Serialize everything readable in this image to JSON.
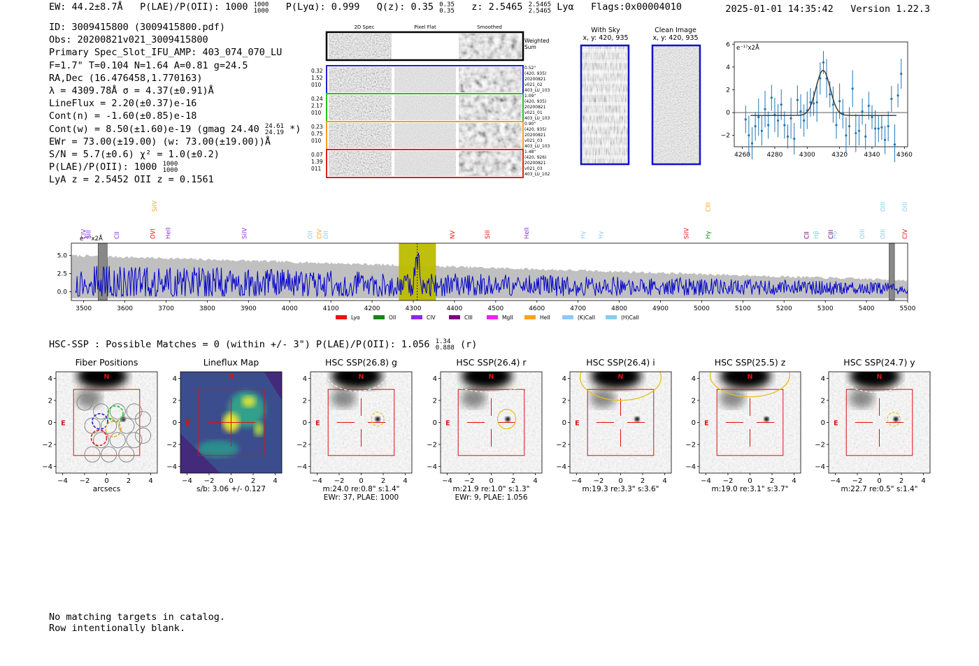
{
  "header": {
    "ew": "EW: 44.2±8.7Å",
    "plae": "P(LAE)/P(OII): 1000",
    "plae_hi": "1000",
    "plae_lo": "1000",
    "plya": "P(Lyα): 0.999",
    "qz": "Q(z): 0.35",
    "qz_hi": "0.35",
    "qz_lo": "0.35",
    "z": "z: 2.5465",
    "z_hi": "2.5465",
    "z_lo": "2.5465",
    "line": "Lyα",
    "flags": "Flags:0x00004010",
    "datetime": "2025-01-01 14:35:42",
    "version": "Version 1.22.3"
  },
  "info": {
    "lines": [
      "ID: 3009415800 (3009415800.pdf)",
      "Obs: 20200821v021_3009415800",
      "Primary Spec_Slot_IFU_AMP: 403_074_070_LU",
      "F=1.7\"  T=0.104  N=1.64  A=0.81  g=24.5",
      "RA,Dec (16.476458,1.770163)",
      "λ = 4309.78Å  σ = 4.37(±0.91)Å",
      "LineFlux = 2.20(±0.37)e-16",
      "Cont(n) = -1.60(±0.85)e-18"
    ],
    "contw": "Cont(w) = 8.50(±1.60)e-19 (gmag 24.40",
    "contw_hi": "24.61",
    "contw_lo": "24.19",
    "contw_end": "*)",
    "lines2": [
      "EWr = 73.00(±19.00) (w: 73.00(±19.00))Å",
      "S/N = 5.7(±0.6)  χ² = 1.0(±0.2)"
    ],
    "plae2": "P(LAE)/P(OII): 1000",
    "plae2_hi": "1000",
    "plae2_lo": "1000",
    "lya_oii": "LyA z = 2.5452  OII z = 0.1561"
  },
  "stamps": {
    "col_headers": [
      "2D Spec",
      "Pixel Flat",
      "Smoothed"
    ],
    "weighted_sum": [
      "Weighted",
      "Sum"
    ],
    "rows": [
      {
        "left": [
          "0.32",
          "1.52",
          "010"
        ],
        "right": [
          "0.52\"",
          "(420, 935)",
          "20200821",
          "v021_02",
          "403_LU_103"
        ],
        "color": "#1f1fd0"
      },
      {
        "left": [
          "0.24",
          "2.17",
          "010"
        ],
        "right": [
          "1.09\"",
          "(420, 935)",
          "20200821",
          "v021_01",
          "403_LU_103"
        ],
        "color": "#22c022"
      },
      {
        "left": [
          "0.23",
          "0.75",
          "010"
        ],
        "right": [
          "0.90\"",
          "(420, 935)",
          "20200821",
          "v021_03",
          "403_LU_103"
        ],
        "color": "#f0a020"
      },
      {
        "left": [
          "0.07",
          "1.39",
          "011"
        ],
        "right": [
          "1.48\"",
          "(420, 926)",
          "20200821",
          "v021_03",
          "403_LU_102"
        ],
        "color": "#e02020"
      }
    ]
  },
  "cutouts": {
    "with_sky": "With Sky",
    "with_sky_xy": "x, y: 420, 935",
    "clean": "Clean Image",
    "clean_xy": "x, y: 420, 935"
  },
  "line_fit": {
    "unit": "e⁻¹⁷x2Å",
    "xticks": [
      "4260",
      "4280",
      "4300",
      "4320",
      "4340",
      "4360"
    ],
    "yticks": [
      "6",
      "4",
      "2",
      "0",
      "−2"
    ]
  },
  "spectrum": {
    "unit": "e⁻¹⁷x2Å",
    "xticks": [
      "3500",
      "3600",
      "3700",
      "3800",
      "3900",
      "4000",
      "4100",
      "4200",
      "4300",
      "4400",
      "4500",
      "4600",
      "4700",
      "4800",
      "4900",
      "5000",
      "5100",
      "5200",
      "5300",
      "5400",
      "5500"
    ],
    "yticks": [
      "5.0",
      "2.5",
      "0.0"
    ],
    "legend": [
      {
        "label": "Lyα",
        "color": "#ee1111"
      },
      {
        "label": "OII",
        "color": "#118811"
      },
      {
        "label": "CIV",
        "color": "#8a2be2"
      },
      {
        "label": "CIII",
        "color": "#800080"
      },
      {
        "label": "MgII",
        "color": "#ee22ee"
      },
      {
        "label": "HeII",
        "color": "#ffa020"
      },
      {
        "label": "(K)CaII",
        "color": "#8ec8ff"
      },
      {
        "label": "(H)CaII",
        "color": "#87ceeb"
      }
    ],
    "lines": [
      {
        "label": "CIV",
        "color": "#8a2be2",
        "wave": 3500,
        "row": 0
      },
      {
        "label": "SiII",
        "color": "#8a2be2",
        "wave": 3512,
        "row": 0
      },
      {
        "label": "CII",
        "color": "#8a2be2",
        "wave": 3580,
        "row": 0
      },
      {
        "label": "SiIV",
        "color": "#ffa020",
        "wave": 3672,
        "row": 1
      },
      {
        "label": "OVI",
        "color": "#ee1111",
        "wave": 3668,
        "row": 0
      },
      {
        "label": "HeII",
        "color": "#8a2be2",
        "wave": 3705,
        "row": 0
      },
      {
        "label": "SiIV",
        "color": "#8a2be2",
        "wave": 3890,
        "row": 0
      },
      {
        "label": "OII",
        "color": "#87ceeb",
        "wave": 4050,
        "row": 0
      },
      {
        "label": "CIV",
        "color": "#ffa020",
        "wave": 4072,
        "row": 0
      },
      {
        "label": "OII",
        "color": "#87ceeb",
        "wave": 4088,
        "row": 0
      },
      {
        "label": "NV",
        "color": "#ee1111",
        "wave": 4395,
        "row": 0
      },
      {
        "label": "SiII",
        "color": "#ee1111",
        "wave": 4480,
        "row": 0
      },
      {
        "label": "HeII",
        "color": "#8a2be2",
        "wave": 4575,
        "row": 0
      },
      {
        "label": "Hγ",
        "color": "#87ceeb",
        "wave": 4712,
        "row": 0
      },
      {
        "label": "Hγ",
        "color": "#87ceeb",
        "wave": 4755,
        "row": 0
      },
      {
        "label": "SiIV",
        "color": "#ee1111",
        "wave": 4963,
        "row": 0
      },
      {
        "label": "CIII",
        "color": "#ffa020",
        "wave": 5015,
        "row": 1
      },
      {
        "label": "Hγ",
        "color": "#118811",
        "wave": 5015,
        "row": 0
      },
      {
        "label": "CII",
        "color": "#800080",
        "wave": 5255,
        "row": 0
      },
      {
        "label": "Hβ",
        "color": "#87ceeb",
        "wave": 5278,
        "row": 0
      },
      {
        "label": "CIII",
        "color": "#800080",
        "wave": 5313,
        "row": 0
      },
      {
        "label": "Hδ",
        "color": "#87ceeb",
        "wave": 5323,
        "row": 0
      },
      {
        "label": "OIII",
        "color": "#87ceeb",
        "wave": 5390,
        "row": 0
      },
      {
        "label": "OIII",
        "color": "#87ceeb",
        "wave": 5440,
        "row": 0
      },
      {
        "label": "OIII",
        "color": "#87ceeb",
        "wave": 5440,
        "row": 1
      },
      {
        "label": "OIII",
        "color": "#87ceeb",
        "wave": 5493,
        "row": 1
      },
      {
        "label": "CIV",
        "color": "#ee1111",
        "wave": 5493,
        "row": 0
      }
    ]
  },
  "hsc_line": {
    "text": "HSC-SSP : Possible Matches = 0 (within +/- 3\")  P(LAE)/P(OII): 1.056",
    "hi": "1.34",
    "lo": "0.888",
    "end": "(r)"
  },
  "panels": [
    {
      "title": "Fiber Positions",
      "cap1": "arcsecs",
      "cap2": "",
      "kind": "fiber"
    },
    {
      "title": "Lineflux Map",
      "cap1": "s/b: 3.06 +/- 0.127",
      "cap2": "",
      "kind": "flux"
    },
    {
      "title": "HSC SSP(26.8) g",
      "cap1": "m:24.0  re:0.8\"  s:1.4\"",
      "cap2": "EWr: 37, PLAE: 1000",
      "kind": "g"
    },
    {
      "title": "HSC SSP(26.4) r",
      "cap1": "m:21.9  re:1.0\"  s:1.3\"",
      "cap2": "EWr: 9, PLAE: 1.056",
      "kind": "r"
    },
    {
      "title": "HSC SSP(26.4) i",
      "cap1": "m:19.3  re:3.3\"  s:3.6\"",
      "cap2": "",
      "kind": "i"
    },
    {
      "title": "HSC SSP(25.5) z",
      "cap1": "m:19.0  re:3.1\"  s:3.7\"",
      "cap2": "",
      "kind": "z"
    },
    {
      "title": "HSC SSP(24.7) y",
      "cap1": "m:22.7  re:0.5\"  s:1.4\"",
      "cap2": "",
      "kind": "y"
    }
  ],
  "panel_axes": {
    "xticks": [
      "−4",
      "−2",
      "0",
      "2",
      "4"
    ],
    "yticks": [
      "4",
      "2",
      "0",
      "−2",
      "−4"
    ],
    "north": "N",
    "east": "E"
  },
  "footer": {
    "line1": "No matching targets in catalog.",
    "line2": "Row intentionally blank."
  },
  "chart_data": [
    {
      "type": "scatter",
      "title": "",
      "xlabel": "",
      "ylabel": "e⁻¹⁷x2Å",
      "xlim": [
        4255,
        4362
      ],
      "ylim": [
        -3,
        6.2
      ],
      "x": [
        4262,
        4264,
        4266,
        4268,
        4270,
        4272,
        4274,
        4276,
        4278,
        4280,
        4282,
        4284,
        4286,
        4288,
        4290,
        4292,
        4294,
        4296,
        4298,
        4300,
        4302,
        4304,
        4306,
        4308,
        4310,
        4312,
        4314,
        4316,
        4318,
        4320,
        4322,
        4324,
        4326,
        4328,
        4330,
        4332,
        4334,
        4336,
        4338,
        4340,
        4342,
        4344,
        4346,
        4348,
        4350,
        4352,
        4354,
        4356,
        4358
      ],
      "y": [
        -0.6,
        -2.0,
        -2.7,
        -1.2,
        -0.4,
        -1.6,
        0.3,
        -1.1,
        1.3,
        -0.2,
        -0.7,
        0.7,
        -1.1,
        -2.1,
        -0.5,
        -2.3,
        1.1,
        0.1,
        -0.7,
        0.2,
        0.9,
        0.8,
        0.9,
        3.0,
        4.4,
        3.0,
        1.6,
        0.7,
        -1.1,
        1.0,
        -0.1,
        -2.0,
        -1.2,
        2.1,
        -1.8,
        -1.6,
        0.1,
        -2.1,
        0.6,
        -0.4,
        -1.4,
        -1.4,
        -1.3,
        -2.4,
        -1.2,
        1.2,
        -2.8,
        1.5,
        3.4
      ],
      "fit": {
        "amplitude": 3.95,
        "center": 4309.8,
        "sigma": 4.37,
        "offset": -0.25
      }
    },
    {
      "type": "line",
      "title": "",
      "xlabel": "",
      "ylabel": "e⁻¹⁷x2Å",
      "xlim": [
        3470,
        5500
      ],
      "ylim": [
        -1.2,
        6.7
      ],
      "series": [
        {
          "name": "spectrum",
          "color": "#0000cc",
          "seed": 7,
          "noise_start": 3.0,
          "noise_end": 1.0
        },
        {
          "name": "error",
          "color": "#c0c0c0",
          "err_start": 5.0,
          "err_end": 1.6
        }
      ],
      "highlight_band": [
        4265,
        4355
      ],
      "line_marker": 4309.8,
      "masked": [
        [
          3535,
          3557
        ],
        [
          5455,
          5468
        ]
      ]
    }
  ]
}
